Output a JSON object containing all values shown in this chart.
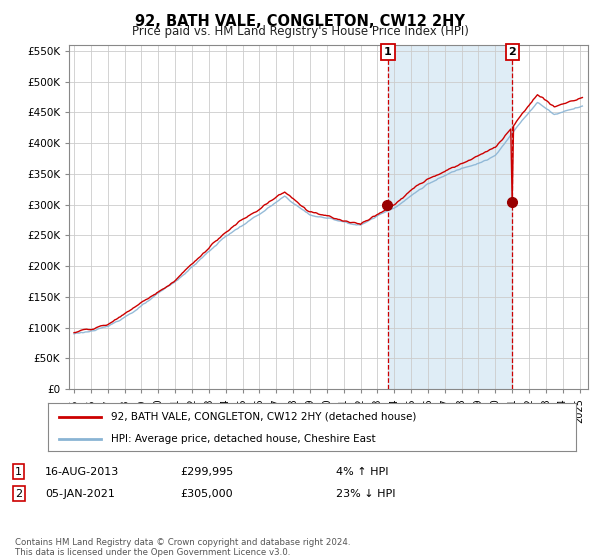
{
  "title": "92, BATH VALE, CONGLETON, CW12 2HY",
  "subtitle": "Price paid vs. HM Land Registry's House Price Index (HPI)",
  "legend_line1": "92, BATH VALE, CONGLETON, CW12 2HY (detached house)",
  "legend_line2": "HPI: Average price, detached house, Cheshire East",
  "hpi_color": "#8ab4d4",
  "price_color": "#cc0000",
  "dot_color": "#990000",
  "vline_color": "#cc0000",
  "bg_shaded_color": "#daeaf5",
  "grid_color": "#cccccc",
  "ylim": [
    0,
    560000
  ],
  "yticks": [
    0,
    50000,
    100000,
    150000,
    200000,
    250000,
    300000,
    350000,
    400000,
    450000,
    500000,
    550000
  ],
  "ytick_labels": [
    "£0",
    "£50K",
    "£100K",
    "£150K",
    "£200K",
    "£250K",
    "£300K",
    "£350K",
    "£400K",
    "£450K",
    "£500K",
    "£550K"
  ],
  "footer": "Contains HM Land Registry data © Crown copyright and database right 2024.\nThis data is licensed under the Open Government Licence v3.0.",
  "note_label1": [
    "1",
    "16-AUG-2013",
    "£299,995",
    "4% ↑ HPI"
  ],
  "note_label2": [
    "2",
    "05-JAN-2021",
    "£305,000",
    "23% ↓ HPI"
  ],
  "ann1_year": 2013.625,
  "ann2_year": 2021.0,
  "ann1_value": 299995,
  "ann2_value": 305000
}
